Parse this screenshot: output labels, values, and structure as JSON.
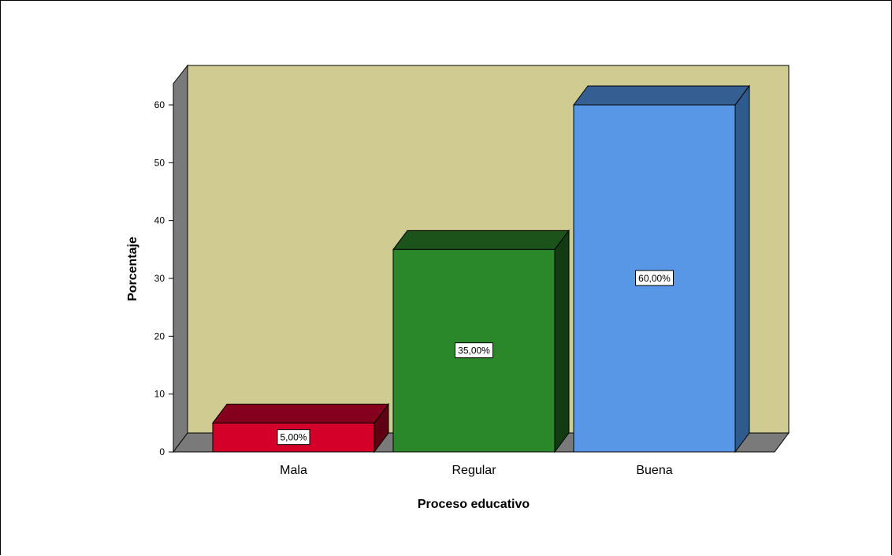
{
  "chart_data": {
    "type": "bar",
    "categories": [
      "Mala",
      "Regular",
      "Buena"
    ],
    "values": [
      5,
      35,
      60
    ],
    "data_labels": [
      "5,00%",
      "35,00%",
      "60,00%"
    ],
    "xlabel": "Proceso educativo",
    "ylabel": "Porcentaje",
    "ylim": [
      0,
      60
    ],
    "yticks": [
      0,
      10,
      20,
      30,
      40,
      50,
      60
    ],
    "grid": false,
    "legend": "none",
    "style": "3d"
  },
  "colors": {
    "plot_background": "#d0cb91",
    "side_walls": "#7a7a7a",
    "bars": [
      {
        "front": "#d5002a",
        "top": "#84001c",
        "side": "#5e0012"
      },
      {
        "front": "#2a882a",
        "top": "#1b531b",
        "side": "#133b13"
      },
      {
        "front": "#5797e5",
        "top": "#355f93",
        "side": "#2e5a8e"
      }
    ]
  }
}
